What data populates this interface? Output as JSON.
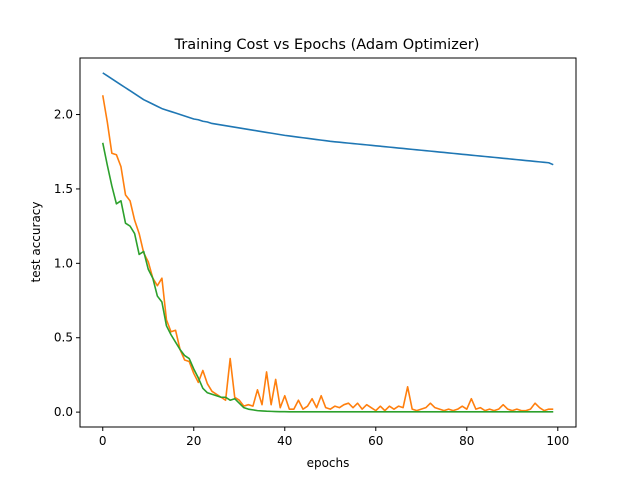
{
  "chart_data": {
    "type": "line",
    "title": "Training Cost vs Epochs (Adam Optimizer)",
    "xlabel": "epochs",
    "ylabel": "test accuracy",
    "xlim": [
      -5,
      104
    ],
    "ylim": [
      -0.1,
      2.38
    ],
    "xticks": [
      "0",
      "20",
      "40",
      "60",
      "80",
      "100"
    ],
    "yticks": [
      "0.0",
      "0.5",
      "1.0",
      "1.5",
      "2.0"
    ],
    "grid": false,
    "legend": "none",
    "series": [
      {
        "color": "#1f77b4",
        "x": [
          0,
          1,
          2,
          3,
          4,
          5,
          6,
          7,
          8,
          9,
          10,
          11,
          12,
          13,
          14,
          15,
          16,
          17,
          18,
          19,
          20,
          21,
          22,
          23,
          24,
          25,
          26,
          27,
          28,
          29,
          30,
          31,
          32,
          33,
          34,
          35,
          36,
          37,
          38,
          39,
          40,
          41,
          42,
          43,
          44,
          45,
          46,
          47,
          48,
          49,
          50,
          51,
          52,
          53,
          54,
          55,
          56,
          57,
          58,
          59,
          60,
          61,
          62,
          63,
          64,
          65,
          66,
          67,
          68,
          69,
          70,
          71,
          72,
          73,
          74,
          75,
          76,
          77,
          78,
          79,
          80,
          81,
          82,
          83,
          84,
          85,
          86,
          87,
          88,
          89,
          90,
          91,
          92,
          93,
          94,
          95,
          96,
          97,
          98,
          99
        ],
        "y": [
          2.28,
          2.26,
          2.24,
          2.22,
          2.2,
          2.18,
          2.16,
          2.14,
          2.12,
          2.1,
          2.085,
          2.07,
          2.055,
          2.04,
          2.03,
          2.02,
          2.01,
          2.0,
          1.99,
          1.98,
          1.97,
          1.965,
          1.955,
          1.95,
          1.94,
          1.935,
          1.93,
          1.925,
          1.92,
          1.915,
          1.91,
          1.905,
          1.9,
          1.895,
          1.89,
          1.885,
          1.88,
          1.875,
          1.87,
          1.865,
          1.86,
          1.856,
          1.852,
          1.848,
          1.844,
          1.84,
          1.836,
          1.832,
          1.828,
          1.824,
          1.82,
          1.817,
          1.814,
          1.811,
          1.808,
          1.805,
          1.802,
          1.799,
          1.796,
          1.793,
          1.79,
          1.787,
          1.784,
          1.781,
          1.778,
          1.775,
          1.772,
          1.769,
          1.766,
          1.763,
          1.76,
          1.757,
          1.754,
          1.751,
          1.748,
          1.745,
          1.742,
          1.739,
          1.736,
          1.733,
          1.73,
          1.727,
          1.724,
          1.721,
          1.718,
          1.715,
          1.712,
          1.709,
          1.706,
          1.703,
          1.7,
          1.697,
          1.694,
          1.691,
          1.688,
          1.685,
          1.682,
          1.679,
          1.676,
          1.663
        ]
      },
      {
        "color": "#ff7f0e",
        "x": [
          0,
          1,
          2,
          3,
          4,
          5,
          6,
          7,
          8,
          9,
          10,
          11,
          12,
          13,
          14,
          15,
          16,
          17,
          18,
          19,
          20,
          21,
          22,
          23,
          24,
          25,
          26,
          27,
          28,
          29,
          30,
          31,
          32,
          33,
          34,
          35,
          36,
          37,
          38,
          39,
          40,
          41,
          42,
          43,
          44,
          45,
          46,
          47,
          48,
          49,
          50,
          51,
          52,
          53,
          54,
          55,
          56,
          57,
          58,
          59,
          60,
          61,
          62,
          63,
          64,
          65,
          66,
          67,
          68,
          69,
          70,
          71,
          72,
          73,
          74,
          75,
          76,
          77,
          78,
          79,
          80,
          81,
          82,
          83,
          84,
          85,
          86,
          87,
          88,
          89,
          90,
          91,
          92,
          93,
          94,
          95,
          96,
          97,
          98,
          99
        ],
        "y": [
          2.13,
          1.95,
          1.74,
          1.73,
          1.65,
          1.46,
          1.42,
          1.29,
          1.2,
          1.07,
          1.01,
          0.9,
          0.85,
          0.9,
          0.62,
          0.54,
          0.55,
          0.42,
          0.35,
          0.34,
          0.26,
          0.2,
          0.28,
          0.19,
          0.14,
          0.12,
          0.1,
          0.08,
          0.36,
          0.1,
          0.08,
          0.04,
          0.05,
          0.04,
          0.15,
          0.05,
          0.27,
          0.05,
          0.22,
          0.03,
          0.11,
          0.02,
          0.02,
          0.08,
          0.02,
          0.04,
          0.09,
          0.03,
          0.11,
          0.03,
          0.02,
          0.04,
          0.03,
          0.05,
          0.06,
          0.03,
          0.06,
          0.02,
          0.05,
          0.03,
          0.01,
          0.04,
          0.01,
          0.04,
          0.02,
          0.04,
          0.03,
          0.17,
          0.02,
          0.01,
          0.02,
          0.03,
          0.06,
          0.03,
          0.02,
          0.01,
          0.02,
          0.01,
          0.02,
          0.04,
          0.02,
          0.09,
          0.02,
          0.03,
          0.01,
          0.02,
          0.01,
          0.02,
          0.05,
          0.02,
          0.01,
          0.02,
          0.01,
          0.01,
          0.02,
          0.06,
          0.03,
          0.01,
          0.02,
          0.02
        ]
      },
      {
        "color": "#2ca02c",
        "x": [
          0,
          1,
          2,
          3,
          4,
          5,
          6,
          7,
          8,
          9,
          10,
          11,
          12,
          13,
          14,
          15,
          16,
          17,
          18,
          19,
          20,
          21,
          22,
          23,
          24,
          25,
          26,
          27,
          28,
          29,
          30,
          31,
          32,
          33,
          34,
          35,
          36,
          37,
          38,
          39,
          40,
          41,
          42,
          43,
          44,
          45,
          46,
          47,
          48,
          49,
          50,
          51,
          52,
          53,
          54,
          55,
          56,
          57,
          58,
          59,
          60,
          61,
          62,
          63,
          64,
          65,
          66,
          67,
          68,
          69,
          70,
          71,
          72,
          73,
          74,
          75,
          76,
          77,
          78,
          79,
          80,
          81,
          82,
          83,
          84,
          85,
          86,
          87,
          88,
          89,
          90,
          91,
          92,
          93,
          94,
          95,
          96,
          97,
          98,
          99
        ],
        "y": [
          1.81,
          1.66,
          1.52,
          1.4,
          1.42,
          1.27,
          1.25,
          1.2,
          1.06,
          1.08,
          0.96,
          0.9,
          0.78,
          0.74,
          0.58,
          0.52,
          0.47,
          0.42,
          0.38,
          0.36,
          0.29,
          0.23,
          0.16,
          0.13,
          0.12,
          0.11,
          0.1,
          0.1,
          0.08,
          0.09,
          0.06,
          0.03,
          0.02,
          0.015,
          0.01,
          0.008,
          0.006,
          0.005,
          0.004,
          0.003,
          0.003,
          0.002,
          0.002,
          0.002,
          0.002,
          0.002,
          0.002,
          0.002,
          0.002,
          0.002,
          0.002,
          0.002,
          0.002,
          0.002,
          0.002,
          0.002,
          0.002,
          0.002,
          0.002,
          0.002,
          0.002,
          0.002,
          0.002,
          0.002,
          0.002,
          0.002,
          0.002,
          0.002,
          0.002,
          0.002,
          0.002,
          0.002,
          0.002,
          0.002,
          0.002,
          0.002,
          0.002,
          0.002,
          0.002,
          0.002,
          0.002,
          0.002,
          0.002,
          0.002,
          0.002,
          0.002,
          0.002,
          0.002,
          0.002,
          0.002,
          0.002,
          0.002,
          0.002,
          0.002,
          0.002,
          0.002,
          0.002,
          0.002,
          0.002,
          0.002
        ]
      }
    ]
  }
}
